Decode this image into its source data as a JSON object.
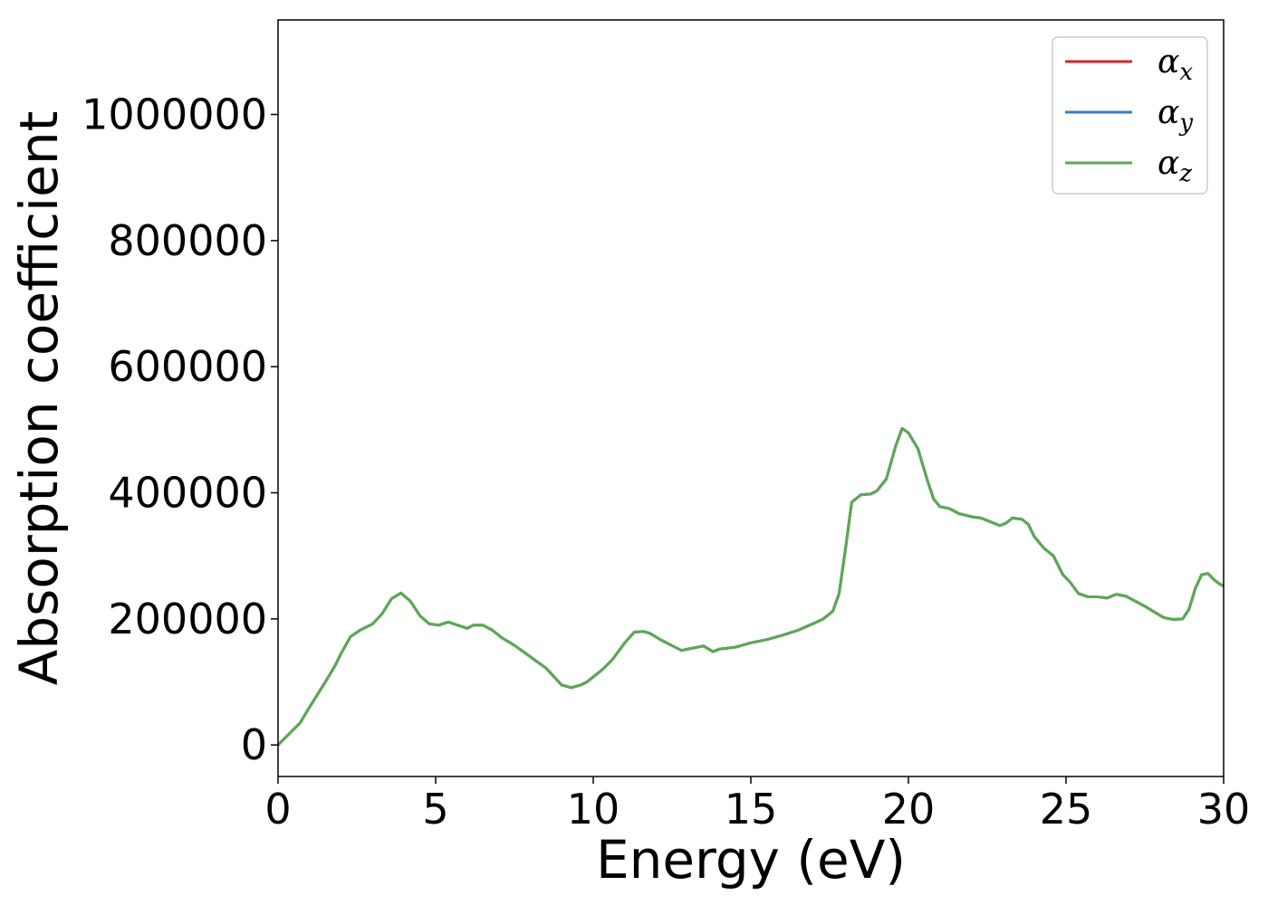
{
  "chart_data": {
    "type": "line",
    "title": "",
    "xlabel": "Energy (eV)",
    "ylabel": "Absorption coefficient",
    "xlim": [
      0,
      30
    ],
    "ylim": [
      -50000,
      1150000
    ],
    "xticks": [
      0,
      5,
      10,
      15,
      20,
      25,
      30
    ],
    "xtick_labels": [
      "0",
      "5",
      "10",
      "15",
      "20",
      "25",
      "30"
    ],
    "yticks": [
      0,
      200000,
      400000,
      600000,
      800000,
      1000000
    ],
    "ytick_labels": [
      "0",
      "200000",
      "400000",
      "600000",
      "800000",
      "1000000"
    ],
    "grid": false,
    "legend_position": "top-right",
    "x": [
      0,
      0.3,
      0.7,
      1.0,
      1.5,
      1.8,
      2.0,
      2.3,
      2.6,
      3.0,
      3.3,
      3.6,
      3.9,
      4.2,
      4.5,
      4.8,
      5.1,
      5.4,
      5.7,
      6.0,
      6.2,
      6.5,
      6.8,
      7.1,
      7.5,
      8.0,
      8.5,
      9.0,
      9.3,
      9.6,
      9.8,
      10.0,
      10.3,
      10.6,
      11.0,
      11.3,
      11.6,
      11.8,
      12.1,
      12.4,
      12.8,
      13.0,
      13.5,
      13.8,
      14.0,
      14.5,
      15.0,
      15.5,
      16.0,
      16.5,
      17.0,
      17.3,
      17.6,
      17.8,
      18.0,
      18.2,
      18.5,
      18.8,
      19.0,
      19.3,
      19.6,
      19.8,
      20.0,
      20.3,
      20.6,
      20.8,
      21.0,
      21.3,
      21.6,
      22.0,
      22.3,
      22.6,
      22.9,
      23.1,
      23.3,
      23.6,
      23.8,
      24.0,
      24.3,
      24.6,
      24.9,
      25.1,
      25.4,
      25.7,
      26.0,
      26.3,
      26.6,
      26.9,
      27.2,
      27.5,
      27.8,
      28.1,
      28.4,
      28.7,
      28.9,
      29.1,
      29.3,
      29.5,
      29.7,
      29.85,
      30.0
    ],
    "series": [
      {
        "name": "α_x",
        "color": "#d62728",
        "values": [
          0,
          15000,
          35000,
          60000,
          100000,
          125000,
          145000,
          172000,
          182000,
          192000,
          208000,
          232000,
          241000,
          228000,
          205000,
          192000,
          190000,
          195000,
          190000,
          185000,
          190000,
          190000,
          182000,
          170000,
          158000,
          140000,
          122000,
          95000,
          91000,
          95000,
          100000,
          108000,
          120000,
          135000,
          162000,
          179000,
          180000,
          177000,
          168000,
          160000,
          150000,
          152000,
          157000,
          148000,
          152000,
          155000,
          162000,
          167000,
          174000,
          182000,
          193000,
          200000,
          212000,
          240000,
          310000,
          385000,
          397000,
          398000,
          403000,
          422000,
          475000,
          502000,
          495000,
          470000,
          420000,
          390000,
          378000,
          375000,
          367000,
          362000,
          360000,
          354000,
          348000,
          352000,
          360000,
          358000,
          350000,
          330000,
          312000,
          300000,
          270000,
          260000,
          240000,
          235000,
          235000,
          233000,
          239000,
          236000,
          228000,
          220000,
          211000,
          202000,
          199000,
          200000,
          215000,
          248000,
          270000,
          272000,
          262000,
          256000,
          252000
        ]
      },
      {
        "name": "α_y",
        "color": "#3a7dc0",
        "values": [
          0,
          15000,
          35000,
          60000,
          100000,
          125000,
          145000,
          172000,
          182000,
          192000,
          208000,
          232000,
          241000,
          228000,
          205000,
          192000,
          190000,
          195000,
          190000,
          185000,
          190000,
          190000,
          182000,
          170000,
          158000,
          140000,
          122000,
          95000,
          91000,
          95000,
          100000,
          108000,
          120000,
          135000,
          162000,
          179000,
          180000,
          177000,
          168000,
          160000,
          150000,
          152000,
          157000,
          148000,
          152000,
          155000,
          162000,
          167000,
          174000,
          182000,
          193000,
          200000,
          212000,
          240000,
          310000,
          385000,
          397000,
          398000,
          403000,
          422000,
          475000,
          502000,
          495000,
          470000,
          420000,
          390000,
          378000,
          375000,
          367000,
          362000,
          360000,
          354000,
          348000,
          352000,
          360000,
          358000,
          350000,
          330000,
          312000,
          300000,
          270000,
          260000,
          240000,
          235000,
          235000,
          233000,
          239000,
          236000,
          228000,
          220000,
          211000,
          202000,
          199000,
          200000,
          215000,
          248000,
          270000,
          272000,
          262000,
          256000,
          252000
        ]
      },
      {
        "name": "α_z",
        "color": "#5aaa52",
        "values": [
          0,
          15000,
          35000,
          60000,
          100000,
          125000,
          145000,
          172000,
          182000,
          192000,
          208000,
          232000,
          241000,
          228000,
          205000,
          192000,
          190000,
          195000,
          190000,
          185000,
          190000,
          190000,
          182000,
          170000,
          158000,
          140000,
          122000,
          95000,
          91000,
          95000,
          100000,
          108000,
          120000,
          135000,
          162000,
          179000,
          180000,
          177000,
          168000,
          160000,
          150000,
          152000,
          157000,
          148000,
          152000,
          155000,
          162000,
          167000,
          174000,
          182000,
          193000,
          200000,
          212000,
          240000,
          310000,
          385000,
          397000,
          398000,
          403000,
          422000,
          475000,
          502000,
          495000,
          470000,
          420000,
          390000,
          378000,
          375000,
          367000,
          362000,
          360000,
          354000,
          348000,
          352000,
          360000,
          358000,
          350000,
          330000,
          312000,
          300000,
          270000,
          260000,
          240000,
          235000,
          235000,
          233000,
          239000,
          236000,
          228000,
          220000,
          211000,
          202000,
          199000,
          200000,
          215000,
          248000,
          270000,
          272000,
          262000,
          256000,
          252000
        ]
      }
    ]
  },
  "legend": {
    "entries": [
      {
        "symbol": "α",
        "subscript": "x",
        "color": "#d62728"
      },
      {
        "symbol": "α",
        "subscript": "y",
        "color": "#3a7dc0"
      },
      {
        "symbol": "α",
        "subscript": "z",
        "color": "#5aaa52"
      }
    ]
  }
}
